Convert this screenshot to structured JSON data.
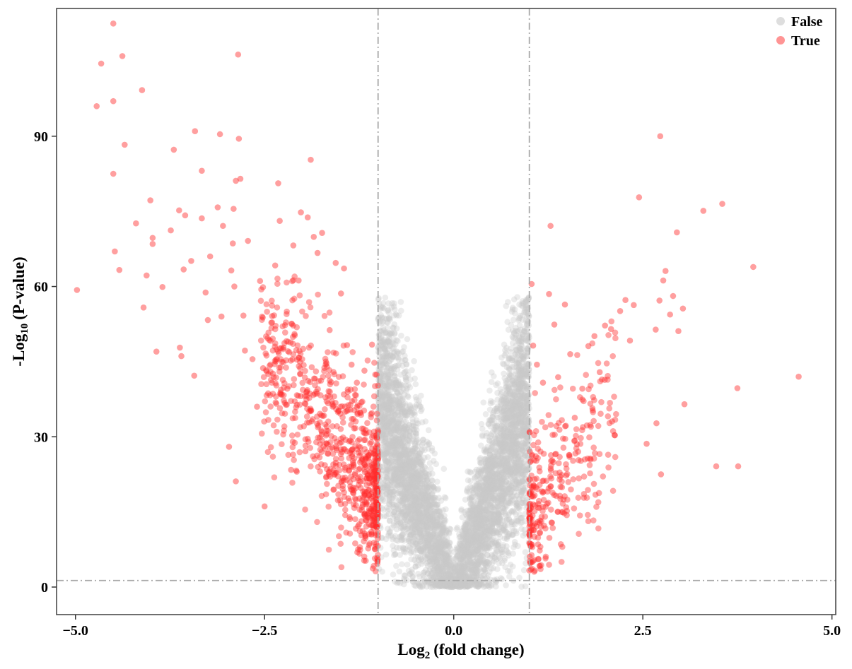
{
  "chart_data": {
    "type": "scatter",
    "xlabel": "Log",
    "xlabel_sub": "2",
    "xlabel_rest": "(fold change)",
    "ylabel": "-Log",
    "ylabel_sub": "10",
    "ylabel_rest": "(P-value)",
    "xlim": [
      -5.25,
      5.05
    ],
    "ylim": [
      -5.5,
      115.5
    ],
    "x_ticks": [
      -5.0,
      -2.5,
      0.0,
      2.5,
      5.0
    ],
    "x_tick_labels": [
      "−5.0",
      "−2.5",
      "0.0",
      "2.5",
      "5.0"
    ],
    "y_ticks": [
      0,
      30,
      60,
      90
    ],
    "y_tick_labels": [
      "0",
      "30",
      "60",
      "90"
    ],
    "thresholds": {
      "x": [
        -1,
        1
      ],
      "y": 1.3
    },
    "grid": false,
    "legend_position": "top-right",
    "series": [
      {
        "name": "False",
        "color": "#c8c8c8"
      },
      {
        "name": "True",
        "color": "#ff2a2a"
      }
    ],
    "highlighted_points": [
      [
        -4.98,
        59.3
      ],
      [
        -4.72,
        96
      ],
      [
        -4.66,
        104.5
      ],
      [
        -4.5,
        112.5
      ],
      [
        -4.5,
        97
      ],
      [
        -4.5,
        82.5
      ],
      [
        -4.48,
        67
      ],
      [
        -4.42,
        63.3
      ],
      [
        -4.38,
        106
      ],
      [
        -4.35,
        88.3
      ],
      [
        -4.12,
        99.2
      ],
      [
        -4.1,
        55.8
      ],
      [
        -4.06,
        62.2
      ],
      [
        -4.01,
        77.2
      ],
      [
        -3.98,
        68.5
      ],
      [
        -3.98,
        69.7
      ],
      [
        -3.93,
        47
      ],
      [
        -4.2,
        72.6
      ],
      [
        -3.85,
        59.9
      ],
      [
        -3.74,
        71.2
      ],
      [
        -3.7,
        87.3
      ],
      [
        -3.63,
        75.2
      ],
      [
        -3.62,
        47.8
      ],
      [
        -3.6,
        46.1
      ],
      [
        -3.57,
        63.4
      ],
      [
        -3.55,
        74.2
      ],
      [
        -3.47,
        65.1
      ],
      [
        -3.43,
        42.2
      ],
      [
        -3.42,
        91
      ],
      [
        -3.33,
        73.6
      ],
      [
        -3.33,
        83.1
      ],
      [
        -3.28,
        58.8
      ],
      [
        -3.25,
        53.3
      ],
      [
        -3.22,
        66
      ],
      [
        -3.12,
        75.8
      ],
      [
        -3.09,
        90.4
      ],
      [
        -3.07,
        54
      ],
      [
        -3.05,
        72.1
      ],
      [
        -2.97,
        28
      ],
      [
        -2.94,
        63.2
      ],
      [
        -2.92,
        68.6
      ],
      [
        -2.91,
        75.5
      ],
      [
        -2.9,
        60
      ],
      [
        -2.88,
        81.1
      ],
      [
        -2.88,
        21.1
      ],
      [
        -2.85,
        106.3
      ],
      [
        -2.84,
        89.5
      ],
      [
        -2.82,
        81.5
      ],
      [
        -2.78,
        54.2
      ],
      [
        -2.76,
        47.2
      ],
      [
        -2.72,
        69.1
      ],
      [
        -2.66,
        45.5
      ],
      [
        -2.6,
        36
      ],
      [
        -2.56,
        61.1
      ],
      [
        -2.52,
        43.7
      ],
      [
        -2.5,
        16.1
      ],
      [
        -2.45,
        42.5
      ],
      [
        -2.4,
        54.1
      ],
      [
        -2.36,
        64.2
      ],
      [
        -2.32,
        80.6
      ],
      [
        -2.3,
        73.1
      ],
      [
        -2.25,
        47.8
      ],
      [
        -2.2,
        39.6
      ],
      [
        -2.15,
        23.4
      ],
      [
        -2.12,
        68.2
      ],
      [
        -2.05,
        61.2
      ],
      [
        -2.02,
        74.8
      ],
      [
        -1.96,
        27.1
      ],
      [
        -1.93,
        73.8
      ],
      [
        -1.89,
        85.3
      ],
      [
        -1.85,
        69.9
      ],
      [
        -1.8,
        66.7
      ],
      [
        -1.74,
        70.7
      ],
      [
        -1.64,
        51.3
      ],
      [
        -1.56,
        64.7
      ],
      [
        -1.49,
        58.6
      ],
      [
        -1.45,
        63.6
      ],
      [
        -1.41,
        48.3
      ],
      [
        -1.35,
        44.4
      ],
      [
        -1.28,
        40.8
      ],
      [
        -1.18,
        43.2
      ],
      [
        -1.08,
        48.4
      ],
      [
        -1.02,
        42.4
      ],
      [
        1.03,
        60.5
      ],
      [
        1.05,
        48.2
      ],
      [
        1.1,
        44.4
      ],
      [
        1.18,
        40.8
      ],
      [
        1.26,
        58.5
      ],
      [
        1.28,
        72.1
      ],
      [
        1.33,
        52.4
      ],
      [
        1.38,
        41.9
      ],
      [
        1.47,
        56.4
      ],
      [
        1.54,
        46.5
      ],
      [
        1.6,
        33.8
      ],
      [
        1.7,
        39.6
      ],
      [
        1.78,
        48.1
      ],
      [
        1.86,
        50.1
      ],
      [
        1.93,
        42.9
      ],
      [
        2.0,
        52.2
      ],
      [
        2.08,
        51.5
      ],
      [
        2.13,
        30.3
      ],
      [
        2.2,
        55.1
      ],
      [
        2.27,
        57.3
      ],
      [
        2.33,
        49.2
      ],
      [
        2.38,
        56.3
      ],
      [
        2.45,
        77.8
      ],
      [
        2.55,
        28.6
      ],
      [
        2.67,
        51.4
      ],
      [
        2.68,
        32.7
      ],
      [
        2.72,
        57.2
      ],
      [
        2.73,
        90
      ],
      [
        2.74,
        22.5
      ],
      [
        2.77,
        61.2
      ],
      [
        2.8,
        63.1
      ],
      [
        2.86,
        54.4
      ],
      [
        2.9,
        58.1
      ],
      [
        2.95,
        70.8
      ],
      [
        2.97,
        51.1
      ],
      [
        3.03,
        55.6
      ],
      [
        3.05,
        36.5
      ],
      [
        3.3,
        75.1
      ],
      [
        3.47,
        24.1
      ],
      [
        3.55,
        76.5
      ],
      [
        3.75,
        39.7
      ],
      [
        3.76,
        24.1
      ],
      [
        3.96,
        63.9
      ],
      [
        4.56,
        42
      ]
    ]
  }
}
